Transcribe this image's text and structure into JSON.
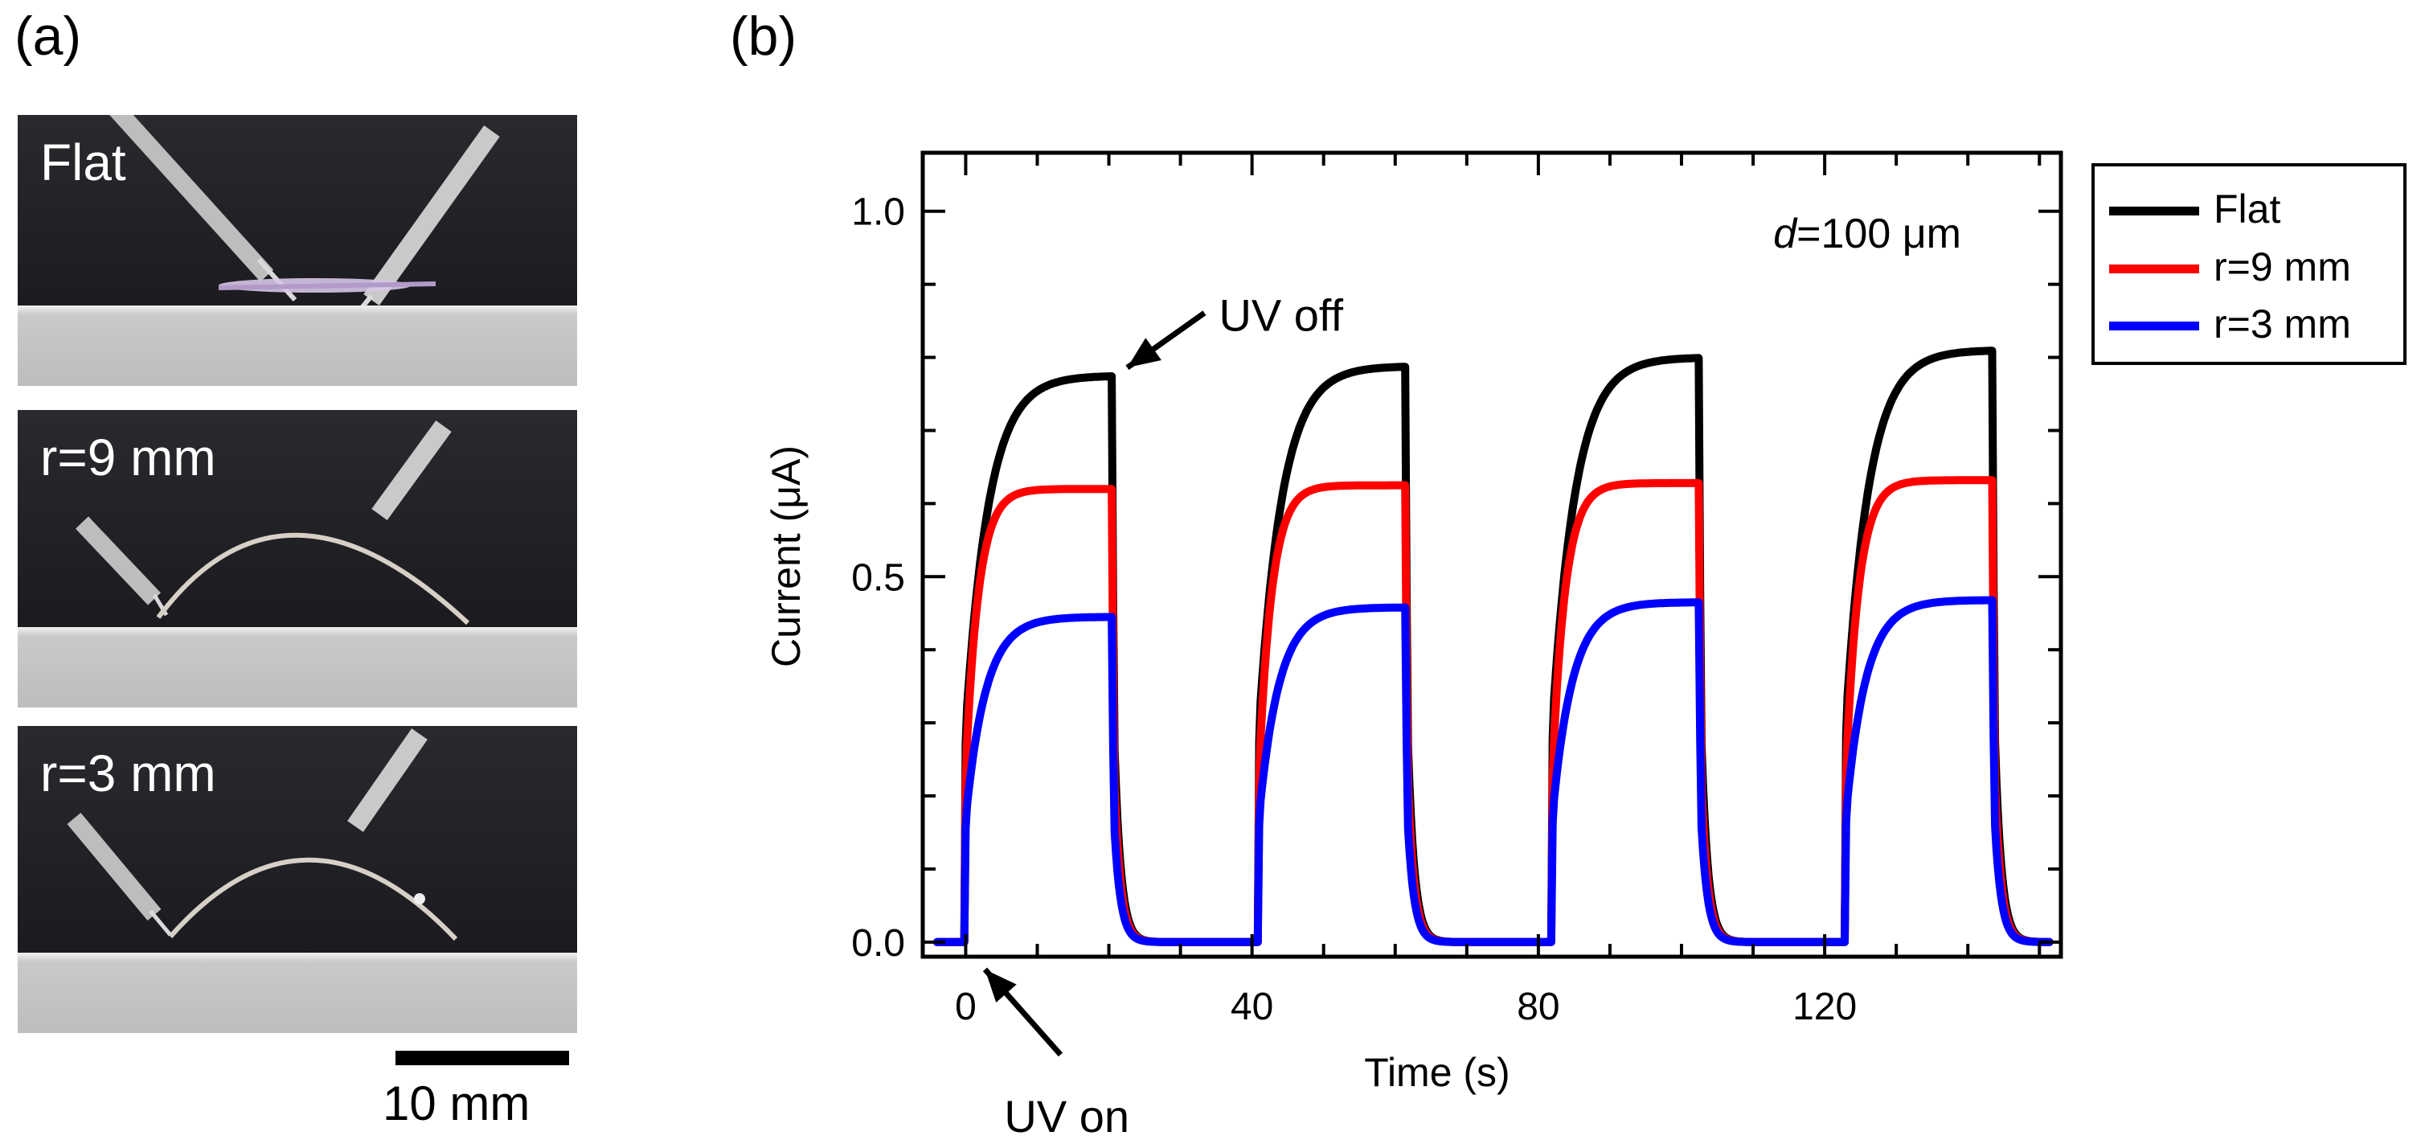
{
  "panel_a": {
    "label": "(a)",
    "photos": [
      {
        "caption": "Flat"
      },
      {
        "caption": "r=9 mm"
      },
      {
        "caption": "r=3 mm"
      }
    ],
    "scale_bar_label": "10 mm"
  },
  "panel_b": {
    "label": "(b)"
  },
  "chart_data": {
    "type": "line",
    "xlabel": "Time (s)",
    "ylabel": "Current (μA)",
    "xlim": [
      -6,
      153
    ],
    "ylim": [
      -0.02,
      1.08
    ],
    "xticks": [
      0,
      40,
      80,
      120
    ],
    "yticks": [
      0.0,
      0.5,
      1.0
    ],
    "xtick_labels": [
      "0",
      "40",
      "80",
      "120"
    ],
    "ytick_labels": [
      "0.0",
      "0.5",
      "1.0"
    ],
    "annotation_inset": {
      "italic": "d",
      "rest": "=100 μm"
    },
    "annotations": [
      {
        "text": "UV off",
        "x": 21,
        "y": 0.775
      },
      {
        "text": "UV on",
        "x": 0,
        "y": 0.0
      }
    ],
    "cycles": [
      {
        "on": 0,
        "off": 20.5
      },
      {
        "on": 41,
        "off": 61.5
      },
      {
        "on": 82,
        "off": 102.5
      },
      {
        "on": 123,
        "off": 143.5
      }
    ],
    "series": [
      {
        "name": "Flat",
        "color": "#000000",
        "tau": 3.2,
        "peaks": [
          0.775,
          0.788,
          0.8,
          0.81
        ]
      },
      {
        "name": "r=9 mm",
        "color": "#ff0000",
        "tau": 1.8,
        "peaks": [
          0.62,
          0.625,
          0.628,
          0.632
        ]
      },
      {
        "name": "r=3 mm",
        "color": "#0000ff",
        "tau": 2.8,
        "peaks": [
          0.445,
          0.458,
          0.465,
          0.468
        ]
      }
    ]
  }
}
